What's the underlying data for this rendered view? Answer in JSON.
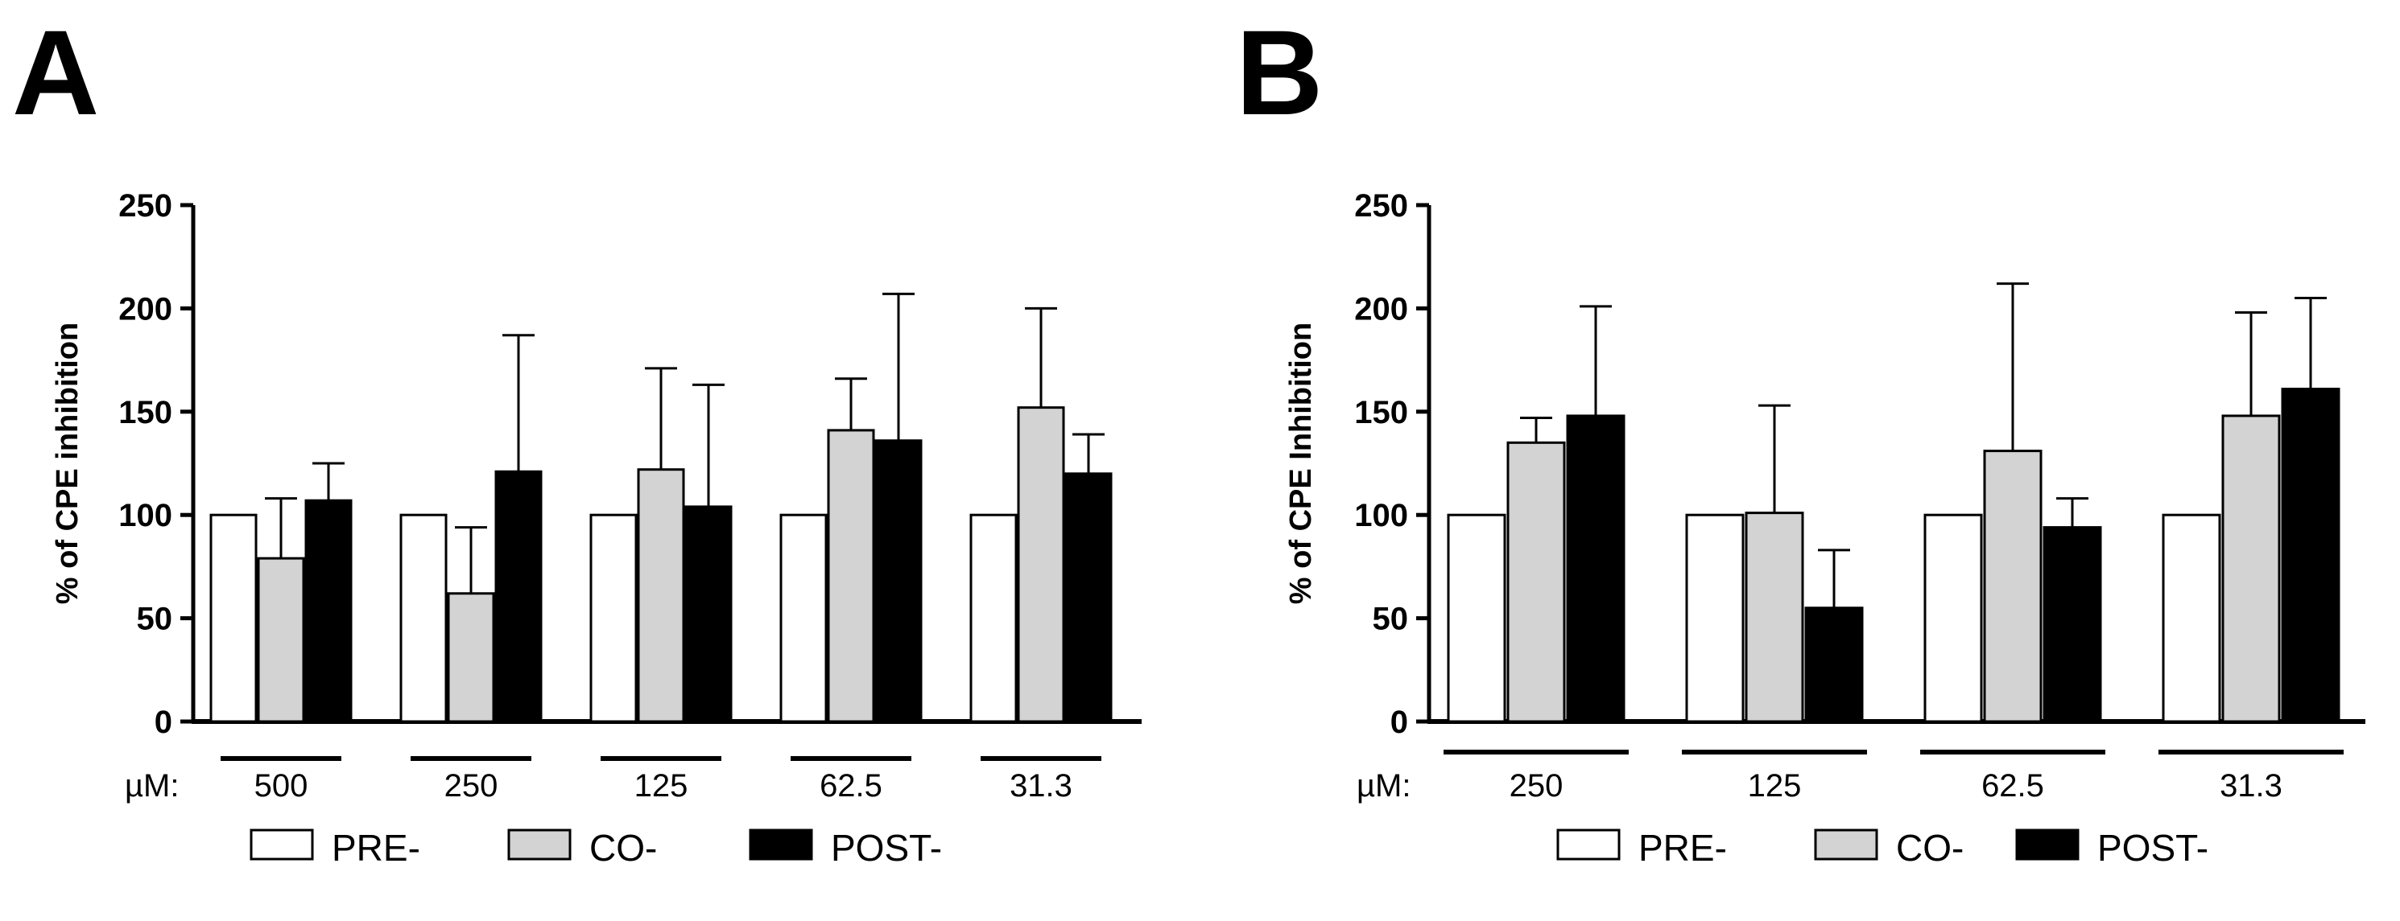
{
  "figure": {
    "unit_label": "µM:"
  },
  "legend": {
    "items": [
      {
        "name": "PRE-",
        "color": "#ffffff"
      },
      {
        "name": "CO-",
        "color": "#d3d3d3"
      },
      {
        "name": "POST-",
        "color": "#000000"
      }
    ]
  },
  "chart_data": [
    {
      "panel": "A",
      "type": "bar",
      "title": "",
      "xlabel": "µM:",
      "ylabel": "% of CPE inhibition",
      "ylim": [
        0,
        250
      ],
      "yticks": [
        0,
        50,
        100,
        150,
        200,
        250
      ],
      "categories": [
        "500",
        "250",
        "125",
        "62.5",
        "31.3"
      ],
      "series": [
        {
          "name": "PRE-",
          "color": "#ffffff",
          "values": [
            100,
            100,
            100,
            100,
            100
          ],
          "errors": [
            0,
            0,
            0,
            0,
            0
          ]
        },
        {
          "name": "CO-",
          "color": "#d3d3d3",
          "values": [
            79,
            62,
            122,
            141,
            152
          ],
          "errors": [
            29,
            32,
            49,
            25,
            48
          ]
        },
        {
          "name": "POST-",
          "color": "#000000",
          "values": [
            107,
            121,
            104,
            136,
            120
          ],
          "errors": [
            18,
            66,
            59,
            71,
            19
          ]
        }
      ]
    },
    {
      "panel": "B",
      "type": "bar",
      "title": "",
      "xlabel": "µM:",
      "ylabel": "% of CPE Inhibition",
      "ylim": [
        0,
        250
      ],
      "yticks": [
        0,
        50,
        100,
        150,
        200,
        250
      ],
      "categories": [
        "250",
        "125",
        "62.5",
        "31.3"
      ],
      "series": [
        {
          "name": "PRE-",
          "color": "#ffffff",
          "values": [
            100,
            100,
            100,
            100
          ],
          "errors": [
            0,
            0,
            0,
            0
          ]
        },
        {
          "name": "CO-",
          "color": "#d3d3d3",
          "values": [
            135,
            101,
            131,
            148
          ],
          "errors": [
            12,
            52,
            81,
            50
          ]
        },
        {
          "name": "POST-",
          "color": "#000000",
          "values": [
            148,
            55,
            94,
            161
          ],
          "errors": [
            53,
            28,
            14,
            44
          ]
        }
      ]
    }
  ]
}
